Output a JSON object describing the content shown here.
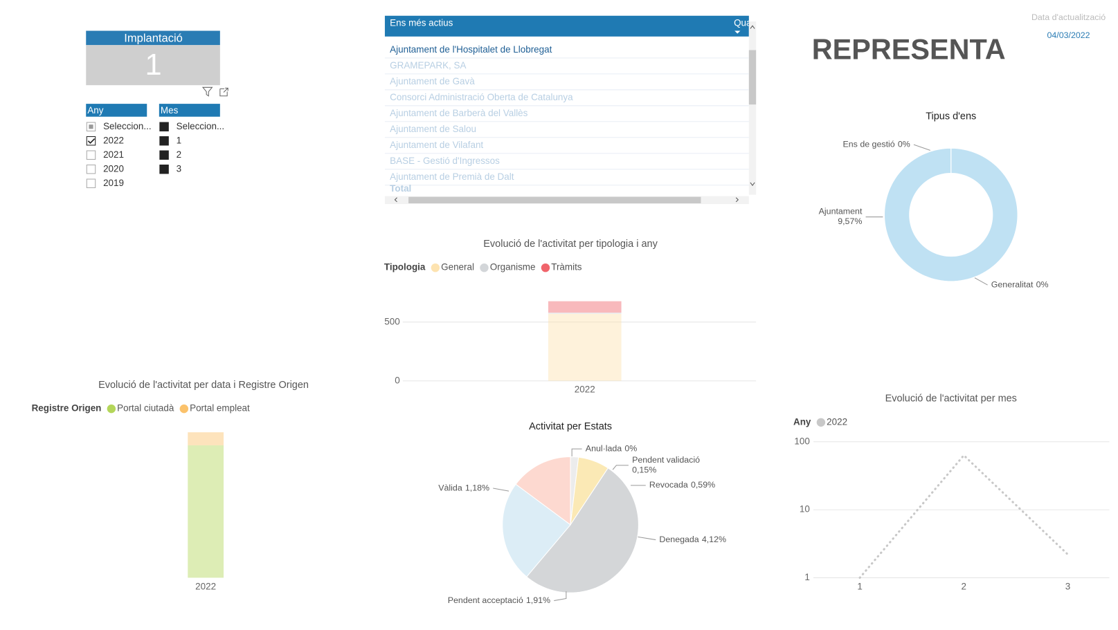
{
  "card": {
    "title": "Implantació",
    "value": 1
  },
  "slicers": [
    {
      "title": "Any",
      "items": [
        "Seleccion...",
        "2022",
        "2021",
        "2020",
        "2019"
      ],
      "state": [
        "partial",
        "checked",
        "unchecked",
        "unchecked",
        "unchecked"
      ]
    },
    {
      "title": "Mes",
      "items": [
        "Seleccion...",
        "1",
        "2",
        "3"
      ],
      "state": [
        "filled",
        "filled",
        "filled",
        "filled"
      ]
    }
  ],
  "table": {
    "columns": [
      "Ens més actius",
      "Qua"
    ],
    "rows": [
      "Ajuntament de l'Hospitalet de Llobregat",
      "GRAMEPARK, SA",
      "Ajuntament de Gavà",
      "Consorci Administració Oberta de Catalunya",
      "Ajuntament de Barberà del Vallès",
      "Ajuntament de Salou",
      "Ajuntament de Vilafant",
      "BASE - Gestió d'Ingressos",
      "Ajuntament de Premià de Dalt"
    ],
    "footer": "Total"
  },
  "update": {
    "label": "Data d'actualització",
    "date": "04/03/2022"
  },
  "brand": "REPRESENTA",
  "chart_data": [
    {
      "type": "donut",
      "title": "Tipus d'ens",
      "categories": [
        "Ens de gestió",
        "Ajuntament",
        "Generalitat"
      ],
      "values": [
        0,
        9.57,
        0
      ],
      "value_labels": [
        "0%",
        "9,57%",
        "0%"
      ],
      "colors": [
        "#bfc3c5",
        "#bfe1f3",
        "#d5d8da"
      ]
    },
    {
      "type": "stacked_bar",
      "title": "Evolució de l'activitat per tipologia i any",
      "legend_title": "Tipologia",
      "categories": [
        "2022"
      ],
      "series": [
        {
          "name": "General",
          "color": "#fde3b0",
          "values": [
            570
          ]
        },
        {
          "name": "Organisme",
          "color": "#d3d6d9",
          "values": [
            10
          ]
        },
        {
          "name": "Tràmits",
          "color": "#f0646b",
          "values": [
            97
          ]
        }
      ],
      "ylim": [
        0,
        700
      ],
      "yticks": [
        0,
        500
      ],
      "grid": true
    },
    {
      "type": "stacked_bar",
      "title": "Evolució de l'activitat per data i Registre Origen",
      "legend_title": "Registre Origen",
      "categories": [
        "2022"
      ],
      "series": [
        {
          "name": "Portal ciutadà",
          "color": "#b4d65a",
          "values": [
            680
          ]
        },
        {
          "name": "Portal empleat",
          "color": "#fbc26b",
          "values": [
            67
          ]
        }
      ],
      "ylim": [
        0,
        750
      ],
      "grid": false
    },
    {
      "type": "pie",
      "title": "Activitat per Estats",
      "categories": [
        "Anul·lada",
        "Pendent validació",
        "Revocada",
        "Denegada",
        "Pendent acceptació",
        "Vàlida"
      ],
      "values": [
        0,
        0.15,
        0.59,
        4.12,
        1.91,
        1.18
      ],
      "value_labels": [
        "0%",
        "0,15%",
        "0,59%",
        "4,12%",
        "1,91%",
        "1,18%"
      ],
      "colors": [
        "#fbe6c4",
        "#ececec",
        "#fbe9b5",
        "#d4d6d8",
        "#dcedf6",
        "#fdd9d0"
      ]
    },
    {
      "type": "line",
      "title": "Evolució de l'activitat per mes",
      "legend_title": "Any",
      "x": [
        1,
        2,
        3
      ],
      "xlim": [
        0.45,
        3.4
      ],
      "xticks": [
        1,
        2,
        3
      ],
      "series": [
        {
          "name": "2022",
          "color": "#c8c8c8",
          "values": [
            1,
            63,
            2.2
          ]
        }
      ],
      "ylim": [
        1,
        100
      ],
      "yticks": [
        1,
        10,
        100
      ],
      "log_y": true,
      "grid": true
    }
  ]
}
